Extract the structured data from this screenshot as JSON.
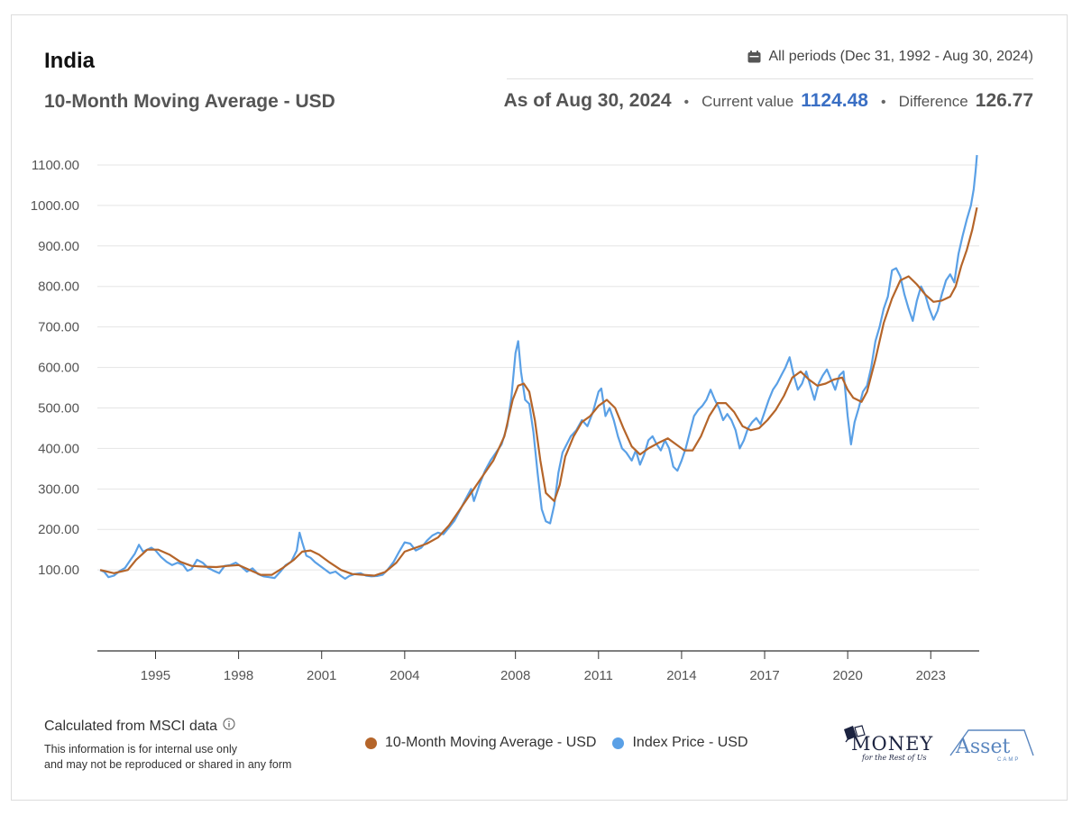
{
  "header": {
    "title": "India",
    "subtitle": "10-Month Moving Average - USD",
    "period_label": "All periods (Dec 31, 1992 - Aug 30, 2024)",
    "as_of": "As of Aug 30, 2024",
    "bullet": "•",
    "current_label": "Current value",
    "current_value": "1124.48",
    "difference_label": "Difference",
    "difference_value": "126.77"
  },
  "footer": {
    "calc_text": "Calculated from MSCI data",
    "info_icon": "info-icon",
    "note_line1": "This information is for internal use only",
    "note_line2": "and may not be reproduced or shared in any form",
    "logo_money": "MONEY",
    "logo_money_tag": "for the Rest of Us",
    "logo_asset": "Asset",
    "logo_asset_sub": "CAMP"
  },
  "colors": {
    "ma": "#b5652a",
    "price": "#5aa0e6",
    "grid": "#e5e5e5",
    "accent_value": "#3a6fc4"
  },
  "chart_data": {
    "type": "line",
    "title": "10-Month Moving Average - USD",
    "xlabel": "",
    "ylabel": "",
    "xlim": [
      1992.9,
      2024.75
    ],
    "ylim": [
      -100,
      1140
    ],
    "yticks": [
      100,
      200,
      300,
      400,
      500,
      600,
      700,
      800,
      900,
      1000,
      1100
    ],
    "ytick_labels": [
      "100.00",
      "200.00",
      "300.00",
      "400.00",
      "500.00",
      "600.00",
      "700.00",
      "800.00",
      "900.00",
      "1000.00",
      "1100.00"
    ],
    "xticks": [
      1995,
      1998,
      2001,
      2004,
      2008,
      2011,
      2014,
      2017,
      2020,
      2023
    ],
    "xtick_labels": [
      "1995",
      "1998",
      "2001",
      "2004",
      "2008",
      "2011",
      "2014",
      "2017",
      "2020",
      "2023"
    ],
    "grid": true,
    "legend_position": "bottom",
    "series": [
      {
        "name": "10-Month Moving Average - USD",
        "color": "#b5652a",
        "points": [
          [
            1993.0,
            100
          ],
          [
            1993.5,
            92
          ],
          [
            1994.0,
            100
          ],
          [
            1994.3,
            125
          ],
          [
            1994.7,
            150
          ],
          [
            1995.1,
            150
          ],
          [
            1995.5,
            138
          ],
          [
            1995.9,
            120
          ],
          [
            1996.3,
            110
          ],
          [
            1996.8,
            108
          ],
          [
            1997.2,
            107
          ],
          [
            1997.6,
            110
          ],
          [
            1998.0,
            112
          ],
          [
            1998.4,
            100
          ],
          [
            1998.8,
            88
          ],
          [
            1999.2,
            88
          ],
          [
            1999.6,
            105
          ],
          [
            2000.0,
            125
          ],
          [
            2000.3,
            145
          ],
          [
            2000.6,
            148
          ],
          [
            2000.9,
            138
          ],
          [
            2001.3,
            118
          ],
          [
            2001.7,
            100
          ],
          [
            2002.1,
            90
          ],
          [
            2002.5,
            88
          ],
          [
            2002.9,
            86
          ],
          [
            2003.3,
            95
          ],
          [
            2003.7,
            118
          ],
          [
            2004.0,
            145
          ],
          [
            2004.4,
            155
          ],
          [
            2004.8,
            165
          ],
          [
            2005.2,
            180
          ],
          [
            2005.6,
            210
          ],
          [
            2006.0,
            250
          ],
          [
            2006.4,
            290
          ],
          [
            2006.8,
            330
          ],
          [
            2007.2,
            370
          ],
          [
            2007.6,
            430
          ],
          [
            2007.9,
            520
          ],
          [
            2008.1,
            555
          ],
          [
            2008.3,
            560
          ],
          [
            2008.5,
            540
          ],
          [
            2008.7,
            470
          ],
          [
            2008.9,
            370
          ],
          [
            2009.1,
            290
          ],
          [
            2009.4,
            270
          ],
          [
            2009.6,
            310
          ],
          [
            2009.8,
            380
          ],
          [
            2010.1,
            430
          ],
          [
            2010.4,
            465
          ],
          [
            2010.7,
            480
          ],
          [
            2011.0,
            505
          ],
          [
            2011.3,
            520
          ],
          [
            2011.6,
            500
          ],
          [
            2011.9,
            450
          ],
          [
            2012.2,
            405
          ],
          [
            2012.5,
            385
          ],
          [
            2012.8,
            400
          ],
          [
            2013.2,
            415
          ],
          [
            2013.5,
            425
          ],
          [
            2013.8,
            410
          ],
          [
            2014.1,
            395
          ],
          [
            2014.4,
            395
          ],
          [
            2014.7,
            430
          ],
          [
            2015.0,
            480
          ],
          [
            2015.3,
            512
          ],
          [
            2015.6,
            512
          ],
          [
            2015.9,
            490
          ],
          [
            2016.2,
            455
          ],
          [
            2016.5,
            445
          ],
          [
            2016.8,
            450
          ],
          [
            2017.1,
            470
          ],
          [
            2017.4,
            495
          ],
          [
            2017.7,
            530
          ],
          [
            2018.0,
            575
          ],
          [
            2018.3,
            590
          ],
          [
            2018.6,
            570
          ],
          [
            2018.9,
            555
          ],
          [
            2019.2,
            560
          ],
          [
            2019.5,
            570
          ],
          [
            2019.8,
            575
          ],
          [
            2020.0,
            545
          ],
          [
            2020.2,
            525
          ],
          [
            2020.5,
            515
          ],
          [
            2020.7,
            540
          ],
          [
            2021.0,
            620
          ],
          [
            2021.3,
            710
          ],
          [
            2021.6,
            770
          ],
          [
            2021.9,
            815
          ],
          [
            2022.2,
            825
          ],
          [
            2022.5,
            805
          ],
          [
            2022.8,
            780
          ],
          [
            2023.1,
            762
          ],
          [
            2023.4,
            765
          ],
          [
            2023.7,
            775
          ],
          [
            2023.9,
            800
          ],
          [
            2024.1,
            850
          ],
          [
            2024.3,
            890
          ],
          [
            2024.5,
            940
          ],
          [
            2024.67,
            995
          ]
        ]
      },
      {
        "name": "Index Price - USD",
        "color": "#5aa0e6",
        "points": [
          [
            1993.0,
            100
          ],
          [
            1993.15,
            95
          ],
          [
            1993.3,
            82
          ],
          [
            1993.5,
            86
          ],
          [
            1993.7,
            97
          ],
          [
            1993.9,
            105
          ],
          [
            1994.1,
            125
          ],
          [
            1994.25,
            140
          ],
          [
            1994.4,
            162
          ],
          [
            1994.55,
            145
          ],
          [
            1994.7,
            150
          ],
          [
            1994.85,
            155
          ],
          [
            1995.0,
            148
          ],
          [
            1995.2,
            132
          ],
          [
            1995.4,
            120
          ],
          [
            1995.6,
            112
          ],
          [
            1995.8,
            118
          ],
          [
            1996.0,
            112
          ],
          [
            1996.15,
            98
          ],
          [
            1996.3,
            102
          ],
          [
            1996.5,
            125
          ],
          [
            1996.7,
            118
          ],
          [
            1996.9,
            105
          ],
          [
            1997.1,
            98
          ],
          [
            1997.3,
            92
          ],
          [
            1997.5,
            110
          ],
          [
            1997.7,
            112
          ],
          [
            1997.9,
            118
          ],
          [
            1998.1,
            108
          ],
          [
            1998.3,
            96
          ],
          [
            1998.5,
            104
          ],
          [
            1998.7,
            90
          ],
          [
            1998.9,
            84
          ],
          [
            1999.1,
            82
          ],
          [
            1999.3,
            80
          ],
          [
            1999.5,
            95
          ],
          [
            1999.7,
            112
          ],
          [
            1999.9,
            120
          ],
          [
            2000.1,
            148
          ],
          [
            2000.2,
            192
          ],
          [
            2000.3,
            168
          ],
          [
            2000.45,
            135
          ],
          [
            2000.6,
            130
          ],
          [
            2000.75,
            120
          ],
          [
            2000.9,
            112
          ],
          [
            2001.1,
            102
          ],
          [
            2001.3,
            92
          ],
          [
            2001.5,
            96
          ],
          [
            2001.7,
            85
          ],
          [
            2001.85,
            78
          ],
          [
            2002.0,
            85
          ],
          [
            2002.2,
            90
          ],
          [
            2002.4,
            92
          ],
          [
            2002.6,
            86
          ],
          [
            2002.8,
            84
          ],
          [
            2003.0,
            85
          ],
          [
            2003.2,
            88
          ],
          [
            2003.4,
            102
          ],
          [
            2003.6,
            120
          ],
          [
            2003.8,
            145
          ],
          [
            2004.0,
            168
          ],
          [
            2004.2,
            165
          ],
          [
            2004.4,
            148
          ],
          [
            2004.6,
            155
          ],
          [
            2004.8,
            172
          ],
          [
            2005.0,
            185
          ],
          [
            2005.2,
            192
          ],
          [
            2005.4,
            188
          ],
          [
            2005.6,
            205
          ],
          [
            2005.8,
            222
          ],
          [
            2006.0,
            248
          ],
          [
            2006.2,
            275
          ],
          [
            2006.4,
            300
          ],
          [
            2006.5,
            270
          ],
          [
            2006.7,
            310
          ],
          [
            2006.9,
            345
          ],
          [
            2007.1,
            370
          ],
          [
            2007.3,
            390
          ],
          [
            2007.5,
            410
          ],
          [
            2007.7,
            455
          ],
          [
            2007.85,
            525
          ],
          [
            2008.0,
            635
          ],
          [
            2008.1,
            665
          ],
          [
            2008.2,
            590
          ],
          [
            2008.35,
            520
          ],
          [
            2008.5,
            510
          ],
          [
            2008.65,
            440
          ],
          [
            2008.8,
            340
          ],
          [
            2008.95,
            250
          ],
          [
            2009.1,
            220
          ],
          [
            2009.25,
            215
          ],
          [
            2009.4,
            260
          ],
          [
            2009.55,
            340
          ],
          [
            2009.7,
            390
          ],
          [
            2009.85,
            410
          ],
          [
            2010.0,
            430
          ],
          [
            2010.2,
            445
          ],
          [
            2010.4,
            470
          ],
          [
            2010.6,
            455
          ],
          [
            2010.8,
            490
          ],
          [
            2011.0,
            540
          ],
          [
            2011.1,
            548
          ],
          [
            2011.25,
            480
          ],
          [
            2011.4,
            500
          ],
          [
            2011.55,
            470
          ],
          [
            2011.7,
            430
          ],
          [
            2011.85,
            400
          ],
          [
            2012.0,
            390
          ],
          [
            2012.2,
            370
          ],
          [
            2012.35,
            395
          ],
          [
            2012.5,
            360
          ],
          [
            2012.65,
            385
          ],
          [
            2012.8,
            420
          ],
          [
            2012.95,
            430
          ],
          [
            2013.1,
            410
          ],
          [
            2013.25,
            395
          ],
          [
            2013.4,
            420
          ],
          [
            2013.55,
            400
          ],
          [
            2013.7,
            355
          ],
          [
            2013.85,
            345
          ],
          [
            2014.0,
            370
          ],
          [
            2014.15,
            400
          ],
          [
            2014.3,
            440
          ],
          [
            2014.45,
            480
          ],
          [
            2014.6,
            495
          ],
          [
            2014.75,
            505
          ],
          [
            2014.9,
            520
          ],
          [
            2015.05,
            545
          ],
          [
            2015.2,
            520
          ],
          [
            2015.35,
            500
          ],
          [
            2015.5,
            470
          ],
          [
            2015.65,
            485
          ],
          [
            2015.8,
            470
          ],
          [
            2015.95,
            445
          ],
          [
            2016.1,
            400
          ],
          [
            2016.25,
            420
          ],
          [
            2016.4,
            450
          ],
          [
            2016.55,
            465
          ],
          [
            2016.7,
            475
          ],
          [
            2016.85,
            460
          ],
          [
            2017.0,
            490
          ],
          [
            2017.15,
            520
          ],
          [
            2017.3,
            545
          ],
          [
            2017.45,
            560
          ],
          [
            2017.6,
            580
          ],
          [
            2017.75,
            600
          ],
          [
            2017.9,
            625
          ],
          [
            2018.05,
            580
          ],
          [
            2018.2,
            545
          ],
          [
            2018.35,
            560
          ],
          [
            2018.5,
            590
          ],
          [
            2018.65,
            555
          ],
          [
            2018.8,
            520
          ],
          [
            2018.95,
            560
          ],
          [
            2019.1,
            580
          ],
          [
            2019.25,
            595
          ],
          [
            2019.4,
            570
          ],
          [
            2019.55,
            545
          ],
          [
            2019.7,
            580
          ],
          [
            2019.85,
            590
          ],
          [
            2020.0,
            480
          ],
          [
            2020.12,
            410
          ],
          [
            2020.25,
            465
          ],
          [
            2020.4,
            500
          ],
          [
            2020.55,
            540
          ],
          [
            2020.7,
            555
          ],
          [
            2020.85,
            600
          ],
          [
            2021.0,
            665
          ],
          [
            2021.15,
            700
          ],
          [
            2021.3,
            745
          ],
          [
            2021.45,
            775
          ],
          [
            2021.6,
            840
          ],
          [
            2021.75,
            845
          ],
          [
            2021.9,
            825
          ],
          [
            2022.05,
            780
          ],
          [
            2022.2,
            745
          ],
          [
            2022.35,
            715
          ],
          [
            2022.5,
            765
          ],
          [
            2022.65,
            800
          ],
          [
            2022.8,
            780
          ],
          [
            2022.95,
            745
          ],
          [
            2023.1,
            718
          ],
          [
            2023.25,
            740
          ],
          [
            2023.4,
            780
          ],
          [
            2023.55,
            815
          ],
          [
            2023.7,
            830
          ],
          [
            2023.85,
            810
          ],
          [
            2024.0,
            880
          ],
          [
            2024.15,
            925
          ],
          [
            2024.3,
            965
          ],
          [
            2024.45,
            1000
          ],
          [
            2024.55,
            1040
          ],
          [
            2024.62,
            1085
          ],
          [
            2024.67,
            1124.48
          ]
        ]
      }
    ]
  }
}
